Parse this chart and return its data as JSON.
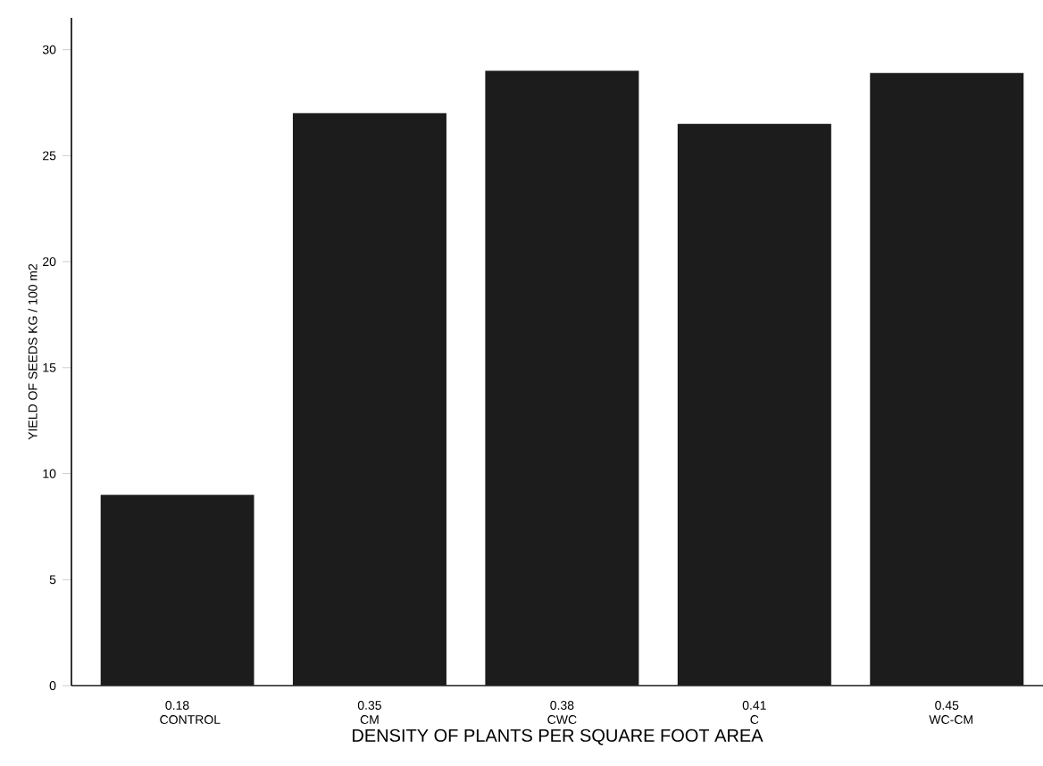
{
  "chart_data": {
    "type": "bar",
    "xlabel": "DENSITY OF PLANTS PER SQUARE FOOT AREA",
    "ylabel": "YIELD OF SEEDS KG / 100 m2",
    "categories": [
      "0.18 CONTROL",
      "0.35 CM",
      "0.38 CWC",
      "0.41 C",
      "0.45 WC-CM"
    ],
    "values": [
      9,
      27,
      29,
      26.5,
      28.9
    ],
    "color": "#1c1c1c",
    "ylim": [
      0,
      31.5
    ],
    "yticks": [
      0,
      5,
      10,
      15,
      20,
      25,
      30
    ],
    "grid": false
  }
}
